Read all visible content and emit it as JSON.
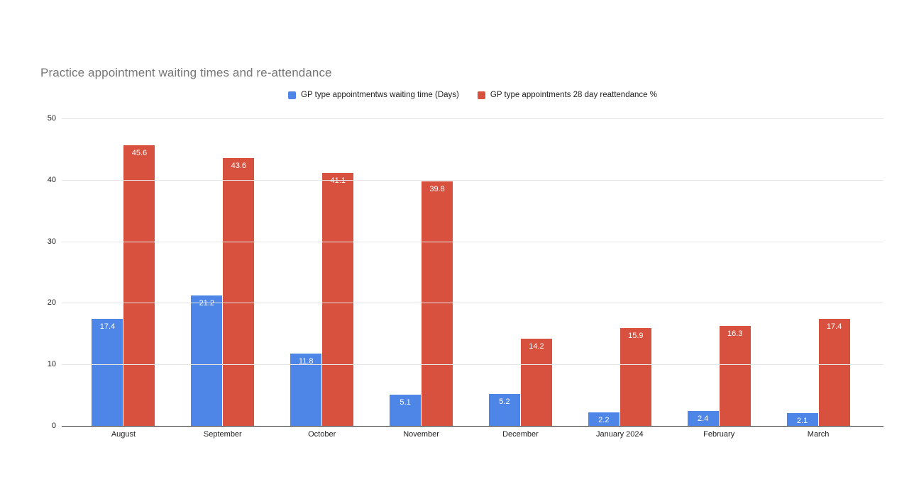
{
  "page": {
    "background_color": "#ffffff"
  },
  "chart_data": {
    "type": "bar",
    "title": "Practice appointment waiting times and re-attendance",
    "title_color": "#757575",
    "categories": [
      "August",
      "September",
      "October",
      "November",
      "December",
      "January 2024",
      "February",
      "March"
    ],
    "series": [
      {
        "name": "GP type appointmentws waiting time (Days)",
        "color": "#4e86e8",
        "values": [
          17.4,
          21.2,
          11.8,
          5.1,
          5.2,
          2.2,
          2.4,
          2.1
        ]
      },
      {
        "name": "GP type appointments 28 day reattendance %",
        "color": "#d8503e",
        "values": [
          45.6,
          43.6,
          41.1,
          39.8,
          14.2,
          15.9,
          16.3,
          17.4
        ]
      }
    ],
    "ylim": [
      0,
      50
    ],
    "yticks": [
      0,
      10,
      20,
      30,
      40,
      50
    ],
    "grid": true,
    "gridline_color": "#e6e6e6",
    "axis_line_color": "#333333",
    "tick_label_color": "#222222",
    "legend_position": "top",
    "data_labels": "inside-top",
    "data_label_color": "#ffffff"
  }
}
